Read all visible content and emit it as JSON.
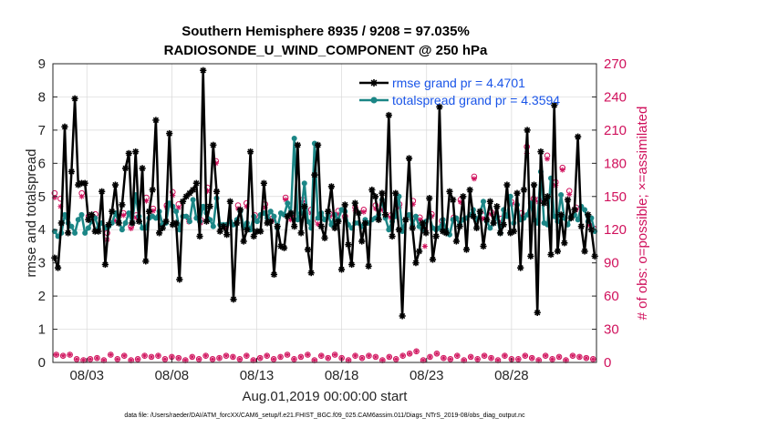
{
  "chart_data": {
    "type": "line",
    "title": [
      "Southern Hemisphere 8935 / 9208 = 97.035%",
      "RADIOSONDE_U_WIND_COMPONENT @ 250 hPa"
    ],
    "xlabel": "Aug.01,2019 00:00:00 start",
    "ylabel_left": "rmse and totalspread",
    "ylabel_right": "# of obs: o=possible; ×=assimilated",
    "xlim": [
      0,
      32
    ],
    "ylim_left": [
      0,
      9
    ],
    "ylim_right": [
      0,
      270
    ],
    "grid": true,
    "x_ticks": [
      2,
      7,
      12,
      17,
      22,
      27
    ],
    "x_tick_labels": [
      "08/03",
      "08/08",
      "08/13",
      "08/18",
      "08/23",
      "08/28"
    ],
    "y_ticks_left": [
      "0",
      "1",
      "2",
      "3",
      "4",
      "5",
      "6",
      "7",
      "8",
      "9"
    ],
    "y_ticks_right": [
      "0",
      "30",
      "60",
      "90",
      "120",
      "150",
      "180",
      "210",
      "240",
      "270"
    ],
    "series": [
      {
        "name": "rmse",
        "legend": "rmse grand pr = 4.4701",
        "color": "#000000",
        "marker": "asterisk",
        "values": [
          3.15,
          2.85,
          4.2,
          7.1,
          3.9,
          5.75,
          7.95,
          5.35,
          5.4,
          5.4,
          4.3,
          4.45,
          3.95,
          3.95,
          5.15,
          2.95,
          4.15,
          4.55,
          5.35,
          4.2,
          4.75,
          5.85,
          6.3,
          4.2,
          6.35,
          4.25,
          5.85,
          3.05,
          4.55,
          5.2,
          7.3,
          3.9,
          4.05,
          4.25,
          6.9,
          4.15,
          4.2,
          2.5,
          4.85,
          5.0,
          5.1,
          5.2,
          5.4,
          3.8,
          8.8,
          4.25,
          4.7,
          6.55,
          5.15,
          3.95,
          4.1,
          3.85,
          4.85,
          1.9,
          4.2,
          4.6,
          3.65,
          4.0,
          6.35,
          3.8,
          3.95,
          3.95,
          5.4,
          4.2,
          4.25,
          2.65,
          4.1,
          3.5,
          3.45,
          4.4,
          4.5,
          4.1,
          6.55,
          3.9,
          4.7,
          3.4,
          2.7,
          5.65,
          6.55,
          4.1,
          3.75,
          4.55,
          5.3,
          4.05,
          4.25,
          2.8,
          4.75,
          3.55,
          2.95,
          4.8,
          4.5,
          3.65,
          4.2,
          2.9,
          5.2,
          5.0,
          4.3,
          5.1,
          4.45,
          7.45,
          3.8,
          5.1,
          4.0,
          1.4,
          4.3,
          6.15,
          4.05,
          3.0,
          3.35,
          4.2,
          3.9,
          4.95,
          3.1,
          3.8,
          7.7,
          3.95,
          3.9,
          5.15,
          4.9,
          3.65,
          4.1,
          5.0,
          3.4,
          5.2,
          4.4,
          4.05,
          4.55,
          3.5,
          4.3,
          4.85,
          4.2,
          4.7,
          3.9,
          4.15,
          5.35,
          3.9,
          3.95,
          5.1,
          2.85,
          5.2,
          7.0,
          3.2,
          5.35,
          1.5,
          6.35,
          4.8,
          5.0,
          3.25,
          7.75,
          3.35,
          4.45,
          3.6,
          4.9,
          4.35,
          4.6,
          6.8,
          4.1,
          3.35,
          4.45,
          4.0,
          3.2
        ]
      },
      {
        "name": "totalspread",
        "legend": "totalspread grand pr = 4.3594",
        "color": "#1b8686",
        "marker": "dot",
        "values": [
          3.95,
          3.8,
          3.9,
          4.45,
          4.2,
          4.1,
          3.9,
          4.3,
          4.45,
          3.9,
          4.05,
          4.25,
          4.35,
          4.05,
          4.2,
          4.05,
          4.1,
          4.2,
          4.5,
          4.25,
          4.0,
          4.2,
          4.5,
          4.2,
          5.05,
          4.4,
          4.05,
          4.05,
          4.35,
          4.4,
          4.35,
          4.55,
          4.15,
          4.2,
          4.8,
          4.7,
          4.55,
          4.0,
          4.4,
          4.4,
          4.25,
          4.9,
          4.35,
          4.25,
          4.7,
          4.5,
          4.3,
          4.1,
          4.95,
          4.15,
          4.15,
          4.15,
          4.25,
          4.15,
          4.3,
          4.55,
          4.1,
          4.2,
          4.0,
          4.4,
          4.25,
          4.45,
          4.5,
          4.35,
          4.55,
          4.4,
          4.05,
          4.5,
          4.45,
          4.8,
          4.5,
          6.75,
          4.3,
          4.5,
          5.4,
          4.25,
          4.05,
          6.6,
          4.35,
          4.5,
          4.3,
          4.45,
          4.15,
          4.45,
          4.3,
          4.6,
          4.55,
          4.15,
          4.05,
          4.2,
          4.2,
          4.1,
          4.3,
          4.2,
          4.3,
          4.35,
          4.45,
          4.9,
          4.35,
          4.0,
          4.25,
          4.4,
          5.0,
          3.95,
          4.3,
          4.45,
          4.15,
          4.4,
          4.1,
          4.0,
          4.25,
          4.4,
          4.05,
          4.0,
          4.05,
          4.3,
          4.0,
          3.85,
          4.3,
          4.35,
          4.15,
          4.3,
          4.35,
          4.45,
          4.6,
          4.3,
          4.5,
          4.85,
          4.25,
          4.05,
          4.2,
          4.4,
          3.9,
          4.6,
          4.4,
          5.0,
          4.2,
          4.75,
          4.3,
          4.35,
          4.45,
          4.8,
          4.3,
          4.2,
          5.75,
          4.2,
          4.15,
          5.55,
          4.4,
          4.25,
          5.05,
          4.35,
          4.15,
          4.4,
          4.45,
          4.3,
          4.7,
          4.6,
          4.25,
          4.35,
          3.95
        ]
      },
      {
        "name": "obs_possible",
        "color": "#d0115c",
        "marker": "circle",
        "axis": "right",
        "points": [
          [
            0.1,
            153
          ],
          [
            0.45,
            148
          ],
          [
            1.7,
            153
          ],
          [
            2.1,
            132
          ],
          [
            2.5,
            134
          ],
          [
            3.2,
            117
          ],
          [
            3.7,
            130
          ],
          [
            4.15,
            135
          ],
          [
            4.6,
            123
          ],
          [
            4.9,
            133
          ],
          [
            5.5,
            149
          ],
          [
            5.9,
            139
          ],
          [
            6.7,
            142
          ],
          [
            7.05,
            154
          ],
          [
            7.4,
            143
          ],
          [
            8.0,
            130
          ],
          [
            8.7,
            129
          ],
          [
            9.1,
            158
          ],
          [
            9.6,
            182
          ],
          [
            10.2,
            124
          ],
          [
            10.9,
            142
          ],
          [
            11.4,
            144
          ],
          [
            11.9,
            133
          ],
          [
            12.5,
            143
          ],
          [
            12.9,
            130
          ],
          [
            13.7,
            149
          ],
          [
            14.0,
            132
          ],
          [
            14.7,
            147
          ],
          [
            15.2,
            138
          ],
          [
            15.6,
            128
          ],
          [
            16.3,
            134
          ],
          [
            16.8,
            137
          ],
          [
            17.2,
            132
          ],
          [
            17.8,
            140
          ],
          [
            18.3,
            138
          ],
          [
            19.0,
            142
          ],
          [
            19.4,
            141
          ],
          [
            19.9,
            133
          ],
          [
            20.4,
            143
          ],
          [
            21.2,
            146
          ],
          [
            21.6,
            131
          ],
          [
            21.9,
            120
          ],
          [
            22.3,
            134
          ],
          [
            22.9,
            128
          ],
          [
            23.6,
            131
          ],
          [
            24.0,
            147
          ],
          [
            24.8,
            168
          ],
          [
            25.3,
            133
          ],
          [
            25.8,
            136
          ],
          [
            26.4,
            130
          ],
          [
            27.0,
            145
          ],
          [
            27.6,
            135
          ],
          [
            27.9,
            195
          ],
          [
            28.3,
            148
          ],
          [
            28.6,
            147
          ],
          [
            29.1,
            187
          ],
          [
            29.6,
            163
          ],
          [
            30.0,
            176
          ],
          [
            30.4,
            155
          ],
          [
            30.8,
            140
          ],
          [
            31.6,
            126
          ],
          [
            31.85,
            121
          ]
        ]
      },
      {
        "name": "obs_assimilated",
        "color": "#d0115c",
        "marker": "asterisk",
        "axis": "right",
        "points": [
          [
            0.1,
            149
          ],
          [
            0.45,
            141
          ],
          [
            1.7,
            150
          ],
          [
            2.1,
            129
          ],
          [
            2.5,
            131
          ],
          [
            3.2,
            111
          ],
          [
            3.7,
            128
          ],
          [
            4.15,
            133
          ],
          [
            4.6,
            121
          ],
          [
            4.9,
            131
          ],
          [
            5.5,
            146
          ],
          [
            5.9,
            137
          ],
          [
            6.7,
            140
          ],
          [
            7.05,
            151
          ],
          [
            7.4,
            140
          ],
          [
            8.0,
            127
          ],
          [
            8.7,
            126
          ],
          [
            9.1,
            155
          ],
          [
            9.6,
            180
          ],
          [
            10.2,
            122
          ],
          [
            10.9,
            139
          ],
          [
            11.4,
            141
          ],
          [
            11.9,
            130
          ],
          [
            12.5,
            140
          ],
          [
            12.9,
            128
          ],
          [
            13.7,
            147
          ],
          [
            14.0,
            129
          ],
          [
            14.7,
            145
          ],
          [
            15.2,
            135
          ],
          [
            15.6,
            125
          ],
          [
            16.3,
            132
          ],
          [
            16.8,
            134
          ],
          [
            17.2,
            130
          ],
          [
            17.8,
            137
          ],
          [
            18.3,
            136
          ],
          [
            19.0,
            139
          ],
          [
            19.4,
            138
          ],
          [
            19.9,
            131
          ],
          [
            20.4,
            140
          ],
          [
            21.2,
            143
          ],
          [
            21.6,
            129
          ],
          [
            21.9,
            105
          ],
          [
            22.3,
            132
          ],
          [
            22.9,
            125
          ],
          [
            23.6,
            128
          ],
          [
            24.0,
            145
          ],
          [
            24.8,
            166
          ],
          [
            25.3,
            130
          ],
          [
            25.8,
            134
          ],
          [
            26.4,
            127
          ],
          [
            27.0,
            143
          ],
          [
            27.6,
            132
          ],
          [
            27.9,
            189
          ],
          [
            28.3,
            145
          ],
          [
            28.6,
            145
          ],
          [
            29.1,
            184
          ],
          [
            29.6,
            160
          ],
          [
            30.0,
            174
          ],
          [
            30.4,
            152
          ],
          [
            30.8,
            138
          ],
          [
            31.6,
            124
          ],
          [
            31.85,
            119
          ]
        ]
      },
      {
        "name": "obs_bottom_possible",
        "color": "#d0115c",
        "marker": "circle",
        "axis": "right",
        "points": [
          [
            0.2,
            7
          ],
          [
            0.6,
            6
          ],
          [
            1.0,
            7
          ],
          [
            1.4,
            3
          ],
          [
            1.8,
            2
          ],
          [
            2.2,
            3
          ],
          [
            2.6,
            4
          ],
          [
            3.0,
            2
          ],
          [
            3.4,
            7
          ],
          [
            3.8,
            3
          ],
          [
            4.2,
            6
          ],
          [
            4.6,
            2
          ],
          [
            5.0,
            3
          ],
          [
            5.4,
            6
          ],
          [
            5.8,
            5
          ],
          [
            6.2,
            6
          ],
          [
            6.6,
            3
          ],
          [
            7.0,
            5
          ],
          [
            7.4,
            4
          ],
          [
            7.8,
            2
          ],
          [
            8.2,
            5
          ],
          [
            8.6,
            3
          ],
          [
            9.0,
            6
          ],
          [
            9.4,
            3
          ],
          [
            9.8,
            4
          ],
          [
            10.2,
            6
          ],
          [
            10.6,
            5
          ],
          [
            11.0,
            3
          ],
          [
            11.4,
            6
          ],
          [
            11.8,
            2
          ],
          [
            12.2,
            4
          ],
          [
            12.6,
            6
          ],
          [
            13.0,
            3
          ],
          [
            13.4,
            5
          ],
          [
            13.8,
            7
          ],
          [
            14.2,
            3
          ],
          [
            14.6,
            5
          ],
          [
            15.0,
            7
          ],
          [
            15.4,
            2
          ],
          [
            15.8,
            6
          ],
          [
            16.2,
            4
          ],
          [
            16.6,
            7
          ],
          [
            17.0,
            4
          ],
          [
            17.4,
            2
          ],
          [
            17.8,
            6
          ],
          [
            18.2,
            4
          ],
          [
            18.6,
            6
          ],
          [
            19.0,
            5
          ],
          [
            19.4,
            2
          ],
          [
            19.8,
            5
          ],
          [
            20.2,
            3
          ],
          [
            20.6,
            6
          ],
          [
            21.0,
            8
          ],
          [
            21.4,
            10
          ],
          [
            21.8,
            2
          ],
          [
            22.2,
            5
          ],
          [
            22.6,
            8
          ],
          [
            23.0,
            4
          ],
          [
            23.4,
            3
          ],
          [
            23.8,
            6
          ],
          [
            24.2,
            2
          ],
          [
            24.6,
            5
          ],
          [
            25.0,
            3
          ],
          [
            25.4,
            6
          ],
          [
            25.8,
            4
          ],
          [
            26.2,
            2
          ],
          [
            26.6,
            6
          ],
          [
            27.0,
            3
          ],
          [
            27.4,
            3
          ],
          [
            27.8,
            6
          ],
          [
            28.2,
            4
          ],
          [
            28.6,
            2
          ],
          [
            29.0,
            6
          ],
          [
            29.4,
            3
          ],
          [
            29.8,
            5
          ],
          [
            30.2,
            2
          ],
          [
            30.6,
            6
          ],
          [
            31.0,
            5
          ],
          [
            31.4,
            4
          ],
          [
            31.8,
            3
          ]
        ]
      }
    ]
  },
  "footer": "data file: /Users/raeder/DAI/ATM_forcXX/CAM6_setup/f.e21.FHIST_BGC.f09_025.CAM6assim.011/Diags_NTrS_2019-08/obs_diag_output.nc"
}
